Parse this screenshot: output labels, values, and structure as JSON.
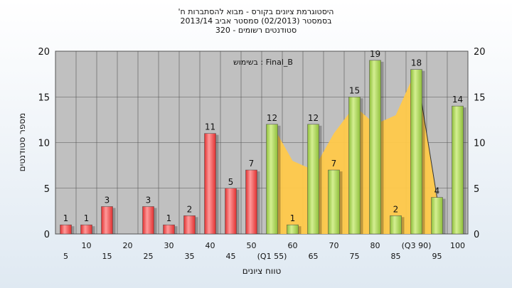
{
  "chart_data": {
    "type": "bar",
    "title_lines": [
      "'היסטוגרמת ציונים בקורס - מבוא להסתברות ח",
      "בסמסטר  (02/2013)  סמסטר אביב 2013/14",
      "סטודנטים רשומים - 320"
    ],
    "legend": "בשימוש : Final_B",
    "xlabel": "טווח ציונים",
    "ylabel": "מספר סטודנטים",
    "ylim": [
      0,
      20
    ],
    "y_ticks": [
      0,
      5,
      10,
      15,
      20
    ],
    "categories": [
      "5",
      "10",
      "15",
      "20",
      "25",
      "30",
      "35",
      "40",
      "45",
      "50",
      "55",
      "60",
      "65",
      "70",
      "75",
      "80",
      "85",
      "90",
      "95",
      "100"
    ],
    "tick_labels": [
      "5",
      "10",
      "15",
      "20",
      "25",
      "30",
      "35",
      "40",
      "45",
      "50",
      "(Q1 55)",
      "60",
      "65",
      "70",
      "75",
      "80",
      "85",
      "(Q3 90)",
      "95",
      "100"
    ],
    "values": [
      1,
      1,
      3,
      0,
      3,
      1,
      2,
      11,
      5,
      7,
      12,
      1,
      12,
      7,
      15,
      19,
      2,
      18,
      4,
      14
    ],
    "value_labels": [
      "1",
      "1",
      "3",
      "",
      "3",
      "1",
      "2",
      "11",
      "5",
      "7",
      "12",
      "1",
      "12",
      "7",
      "15",
      "19",
      "2",
      "18",
      "4",
      "14"
    ],
    "bar_groups": [
      "red",
      "red",
      "red",
      "red",
      "red",
      "red",
      "red",
      "red",
      "red",
      "red",
      "green",
      "green",
      "green",
      "green",
      "green",
      "green",
      "green",
      "green",
      "green",
      "green"
    ],
    "band": {
      "x": [
        55,
        60,
        65,
        70,
        75,
        80,
        85,
        90,
        95
      ],
      "y": [
        12,
        8,
        7,
        11,
        14,
        12,
        13,
        18,
        4
      ]
    },
    "colors": {
      "plot_bg": "#c0c0c0",
      "red": "#e03030",
      "red_light": "#ff9a9a",
      "green": "#8fbf3a",
      "green_light": "#d4ef92",
      "band": "#ffc94a"
    }
  }
}
